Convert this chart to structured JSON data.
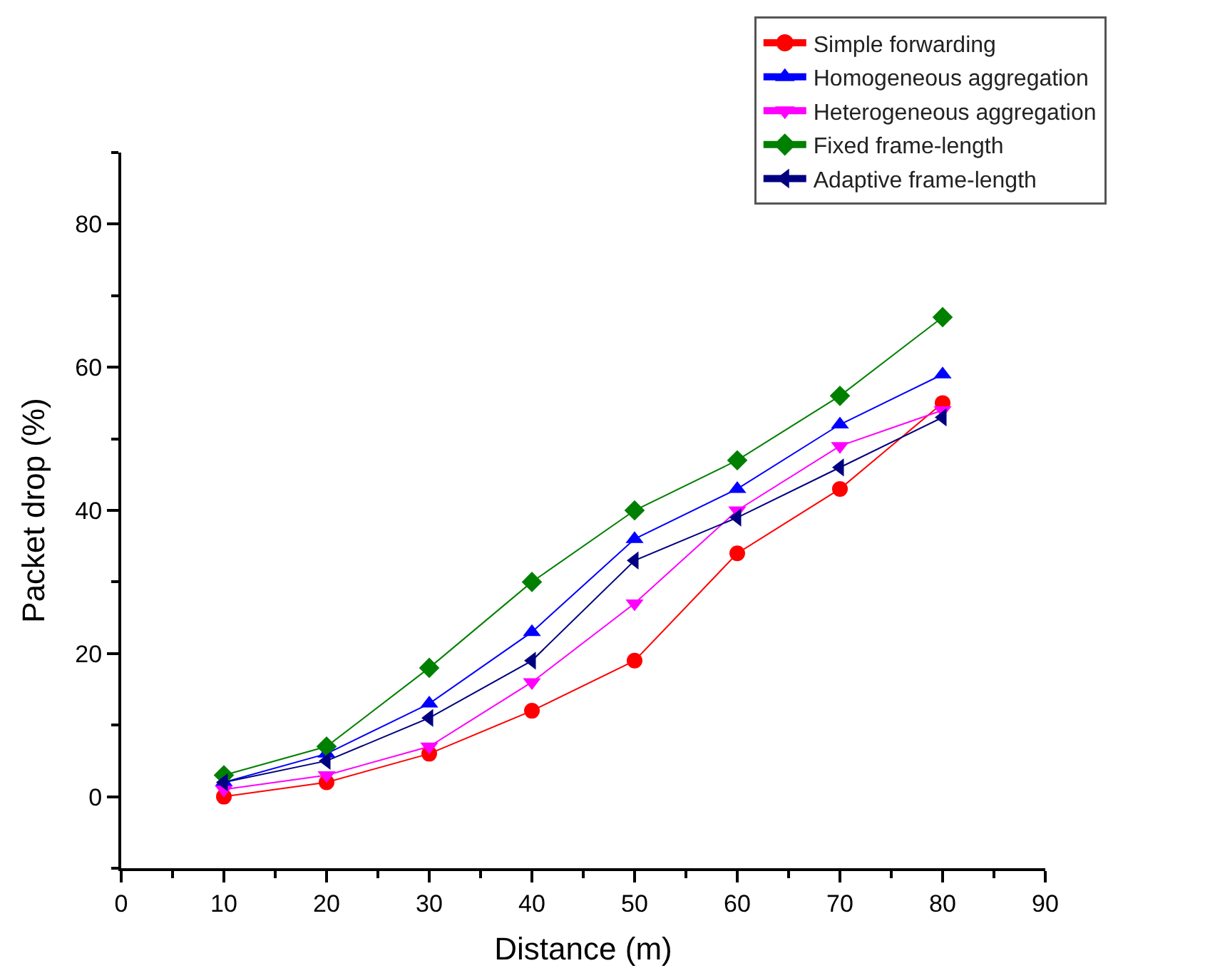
{
  "chart_data": {
    "type": "line",
    "xlabel": "Distance (m)",
    "ylabel": "Packet drop (%)",
    "x": [
      10,
      20,
      30,
      40,
      50,
      60,
      70,
      80
    ],
    "series": [
      {
        "name": "Simple forwarding",
        "color": "#ff0000",
        "marker": "circle",
        "values": [
          0,
          2,
          6,
          12,
          19,
          34,
          43,
          55
        ]
      },
      {
        "name": "Homogeneous aggregation",
        "color": "#0000ff",
        "marker": "triangle-up",
        "values": [
          2,
          6,
          13,
          23,
          36,
          43,
          52,
          59
        ]
      },
      {
        "name": "Heterogeneous aggregation",
        "color": "#ff00ff",
        "marker": "triangle-down",
        "values": [
          1,
          3,
          7,
          16,
          27,
          40,
          49,
          54
        ]
      },
      {
        "name": "Fixed frame-length",
        "color": "#008000",
        "marker": "diamond",
        "values": [
          3,
          7,
          18,
          30,
          40,
          47,
          56,
          67
        ]
      },
      {
        "name": "Adaptive frame-length",
        "color": "#000080",
        "marker": "triangle-left",
        "values": [
          2,
          5,
          11,
          19,
          33,
          39,
          46,
          53
        ]
      }
    ],
    "xlim": [
      0,
      90
    ],
    "xticks": [
      0,
      10,
      20,
      30,
      40,
      50,
      60,
      70,
      80,
      90
    ],
    "ylim": [
      -10,
      90
    ],
    "yticks": [
      0,
      20,
      40,
      60,
      80
    ],
    "legend": "top right",
    "line_style": "solid"
  }
}
